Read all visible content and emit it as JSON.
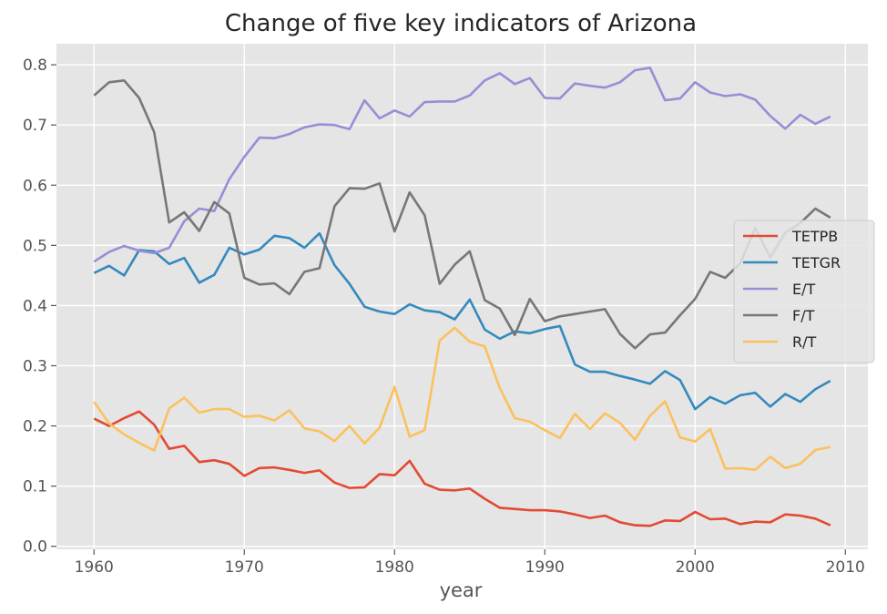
{
  "chart_data": {
    "type": "line",
    "title": "Change of five key indicators of Arizona",
    "xlabel": "year",
    "ylabel": "",
    "xlim": [
      1957.5,
      2011.5
    ],
    "ylim": [
      -0.005,
      0.835
    ],
    "xticks": [
      "1960",
      "1970",
      "1980",
      "1990",
      "2000",
      "2010"
    ],
    "yticks": [
      "0.0",
      "0.1",
      "0.2",
      "0.3",
      "0.4",
      "0.5",
      "0.6",
      "0.7",
      "0.8"
    ],
    "grid": true,
    "legend_position": "right",
    "x": [
      1960,
      1961,
      1962,
      1963,
      1964,
      1965,
      1966,
      1967,
      1968,
      1969,
      1970,
      1971,
      1972,
      1973,
      1974,
      1975,
      1976,
      1977,
      1978,
      1979,
      1980,
      1981,
      1982,
      1983,
      1984,
      1985,
      1986,
      1987,
      1988,
      1989,
      1990,
      1991,
      1992,
      1993,
      1994,
      1995,
      1996,
      1997,
      1998,
      1999,
      2000,
      2001,
      2002,
      2003,
      2004,
      2005,
      2006,
      2007,
      2008,
      2009
    ],
    "series": [
      {
        "name": "TETPB",
        "color": "#E24A33",
        "values": [
          0.212,
          0.2,
          0.213,
          0.224,
          0.202,
          0.162,
          0.167,
          0.14,
          0.143,
          0.137,
          0.117,
          0.13,
          0.131,
          0.127,
          0.122,
          0.126,
          0.106,
          0.097,
          0.098,
          0.12,
          0.118,
          0.142,
          0.104,
          0.094,
          0.093,
          0.096,
          0.079,
          0.064,
          0.062,
          0.06,
          0.06,
          0.058,
          0.053,
          0.047,
          0.051,
          0.04,
          0.035,
          0.034,
          0.043,
          0.042,
          0.057,
          0.045,
          0.046,
          0.037,
          0.041,
          0.04,
          0.053,
          0.051,
          0.046,
          0.035
        ]
      },
      {
        "name": "TETGR",
        "color": "#348ABD",
        "values": [
          0.454,
          0.466,
          0.45,
          0.492,
          0.49,
          0.469,
          0.479,
          0.438,
          0.451,
          0.496,
          0.485,
          0.493,
          0.516,
          0.512,
          0.496,
          0.52,
          0.467,
          0.436,
          0.398,
          0.39,
          0.386,
          0.402,
          0.392,
          0.389,
          0.377,
          0.41,
          0.36,
          0.345,
          0.357,
          0.354,
          0.361,
          0.366,
          0.302,
          0.29,
          0.29,
          0.283,
          0.277,
          0.27,
          0.291,
          0.276,
          0.228,
          0.248,
          0.237,
          0.251,
          0.255,
          0.232,
          0.253,
          0.24,
          0.261,
          0.275
        ]
      },
      {
        "name": "E/T",
        "color": "#988ED5",
        "values": [
          0.473,
          0.489,
          0.499,
          0.491,
          0.487,
          0.496,
          0.54,
          0.561,
          0.557,
          0.61,
          0.647,
          0.679,
          0.678,
          0.685,
          0.696,
          0.701,
          0.7,
          0.693,
          0.741,
          0.711,
          0.724,
          0.714,
          0.738,
          0.739,
          0.739,
          0.749,
          0.774,
          0.786,
          0.768,
          0.778,
          0.745,
          0.744,
          0.769,
          0.765,
          0.762,
          0.771,
          0.791,
          0.795,
          0.741,
          0.744,
          0.771,
          0.754,
          0.748,
          0.751,
          0.742,
          0.715,
          0.694,
          0.717,
          0.702,
          0.714
        ]
      },
      {
        "name": "F/T",
        "color": "#777777",
        "values": [
          0.749,
          0.771,
          0.774,
          0.745,
          0.688,
          0.538,
          0.555,
          0.524,
          0.572,
          0.553,
          0.446,
          0.435,
          0.437,
          0.419,
          0.456,
          0.462,
          0.565,
          0.595,
          0.594,
          0.603,
          0.523,
          0.588,
          0.55,
          0.436,
          0.468,
          0.49,
          0.409,
          0.395,
          0.351,
          0.411,
          0.374,
          0.382,
          0.386,
          0.39,
          0.394,
          0.353,
          0.329,
          0.352,
          0.355,
          0.384,
          0.411,
          0.456,
          0.446,
          0.47,
          0.529,
          0.48,
          0.521,
          0.537,
          0.561,
          0.546
        ]
      },
      {
        "name": "R/T",
        "color": "#FBC15E",
        "values": [
          0.24,
          0.204,
          0.186,
          0.172,
          0.159,
          0.229,
          0.247,
          0.222,
          0.228,
          0.228,
          0.215,
          0.217,
          0.209,
          0.226,
          0.196,
          0.191,
          0.175,
          0.2,
          0.171,
          0.197,
          0.265,
          0.182,
          0.193,
          0.342,
          0.363,
          0.34,
          0.332,
          0.263,
          0.213,
          0.207,
          0.193,
          0.18,
          0.22,
          0.195,
          0.221,
          0.205,
          0.177,
          0.217,
          0.241,
          0.181,
          0.174,
          0.195,
          0.129,
          0.13,
          0.127,
          0.149,
          0.13,
          0.137,
          0.16,
          0.165
        ]
      }
    ]
  }
}
